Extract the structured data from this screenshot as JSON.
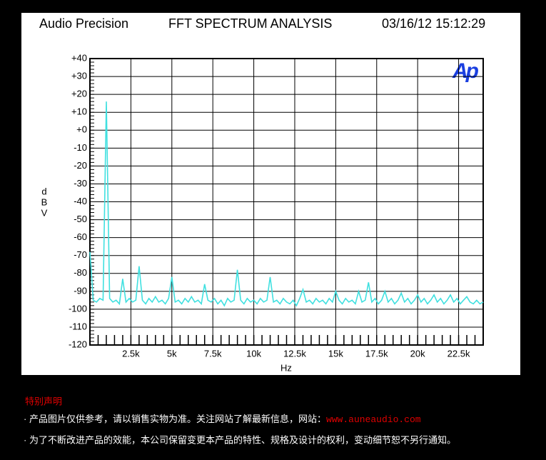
{
  "brand": "Audio Precision",
  "timestamp": "03/16/12 15:12:29",
  "logo": "Ap",
  "chart_data": {
    "type": "line",
    "title": "FFT SPECTRUM ANALYSIS",
    "x_label": "Hz",
    "y_label": "dBV",
    "color": "#40e0e0",
    "grid": true,
    "xlim": [
      0,
      24000
    ],
    "ylim": [
      -120,
      40
    ],
    "xticks": [
      {
        "value": 2500,
        "label": "2.5k"
      },
      {
        "value": 5000,
        "label": "5k"
      },
      {
        "value": 7500,
        "label": "7.5k"
      },
      {
        "value": 10000,
        "label": "10k"
      },
      {
        "value": 12500,
        "label": "12.5k"
      },
      {
        "value": 15000,
        "label": "15k"
      },
      {
        "value": 17500,
        "label": "17.5k"
      },
      {
        "value": 20000,
        "label": "20k"
      },
      {
        "value": 22500,
        "label": "22.5k"
      }
    ],
    "yticks": [
      {
        "value": 40,
        "label": "+40"
      },
      {
        "value": 30,
        "label": "+30"
      },
      {
        "value": 20,
        "label": "+20"
      },
      {
        "value": 10,
        "label": "+10"
      },
      {
        "value": 0,
        "label": "+0"
      },
      -10,
      -20,
      -30,
      -40,
      -50,
      -60,
      -70,
      -80,
      -90,
      -100,
      -110,
      -120
    ],
    "x": [
      0,
      200,
      400,
      600,
      800,
      1000,
      1200,
      1400,
      1600,
      1800,
      2000,
      2200,
      2400,
      2600,
      2800,
      3000,
      3200,
      3400,
      3600,
      3800,
      4000,
      4200,
      4400,
      4600,
      4800,
      5000,
      5200,
      5400,
      5600,
      5800,
      6000,
      6200,
      6400,
      6600,
      6800,
      7000,
      7200,
      7400,
      7600,
      7800,
      8000,
      8200,
      8400,
      8600,
      8800,
      9000,
      9200,
      9400,
      9600,
      9800,
      10000,
      10200,
      10400,
      10600,
      10800,
      11000,
      11200,
      11400,
      11600,
      11800,
      12000,
      12200,
      12400,
      12600,
      12800,
      13000,
      13200,
      13400,
      13600,
      13800,
      14000,
      14200,
      14400,
      14600,
      14800,
      15000,
      15200,
      15400,
      15600,
      15800,
      16000,
      16200,
      16400,
      16600,
      16800,
      17000,
      17200,
      17400,
      17600,
      17800,
      18000,
      18200,
      18400,
      18600,
      18800,
      19000,
      19200,
      19400,
      19600,
      19800,
      20000,
      20200,
      20400,
      20600,
      20800,
      21000,
      21200,
      21400,
      21600,
      21800,
      22000,
      22200,
      22400,
      22600,
      22800,
      23000,
      23200,
      23400,
      23600,
      23800,
      24000
    ],
    "values": [
      -68,
      -95,
      -96,
      -94,
      -95,
      16,
      -94,
      -96,
      -95,
      -97,
      -83,
      -96,
      -94,
      -96,
      -95,
      -76,
      -95,
      -97,
      -94,
      -96,
      -93,
      -96,
      -95,
      -97,
      -94,
      -82,
      -96,
      -95,
      -97,
      -94,
      -96,
      -93,
      -96,
      -95,
      -97,
      -86,
      -95,
      -96,
      -94,
      -97,
      -95,
      -98,
      -94,
      -96,
      -95,
      -78,
      -95,
      -97,
      -94,
      -96,
      -95,
      -97,
      -94,
      -96,
      -95,
      -82,
      -96,
      -95,
      -97,
      -94,
      -96,
      -97,
      -95,
      -98,
      -94,
      -89,
      -96,
      -95,
      -97,
      -94,
      -96,
      -95,
      -97,
      -94,
      -96,
      -90,
      -95,
      -97,
      -94,
      -96,
      -95,
      -97,
      -90,
      -96,
      -95,
      -85,
      -96,
      -94,
      -97,
      -95,
      -90,
      -96,
      -94,
      -97,
      -95,
      -91,
      -96,
      -94,
      -97,
      -95,
      -92,
      -96,
      -94,
      -97,
      -95,
      -92,
      -96,
      -94,
      -97,
      -95,
      -92,
      -96,
      -94,
      -97,
      -95,
      -93,
      -96,
      -97,
      -95,
      -97,
      -96
    ]
  },
  "notes": {
    "heading": "特别声明",
    "lines": [
      {
        "text": "· 产品图片仅供参考，请以销售实物为准。关注网站了解最新信息，网站：",
        "link": "www.auneaudio.com"
      },
      {
        "text": "· 为了不断改进产品的效能，本公司保留变更本产品的特性、规格及设计的权利，变动细节恕不另行通知。"
      }
    ]
  }
}
